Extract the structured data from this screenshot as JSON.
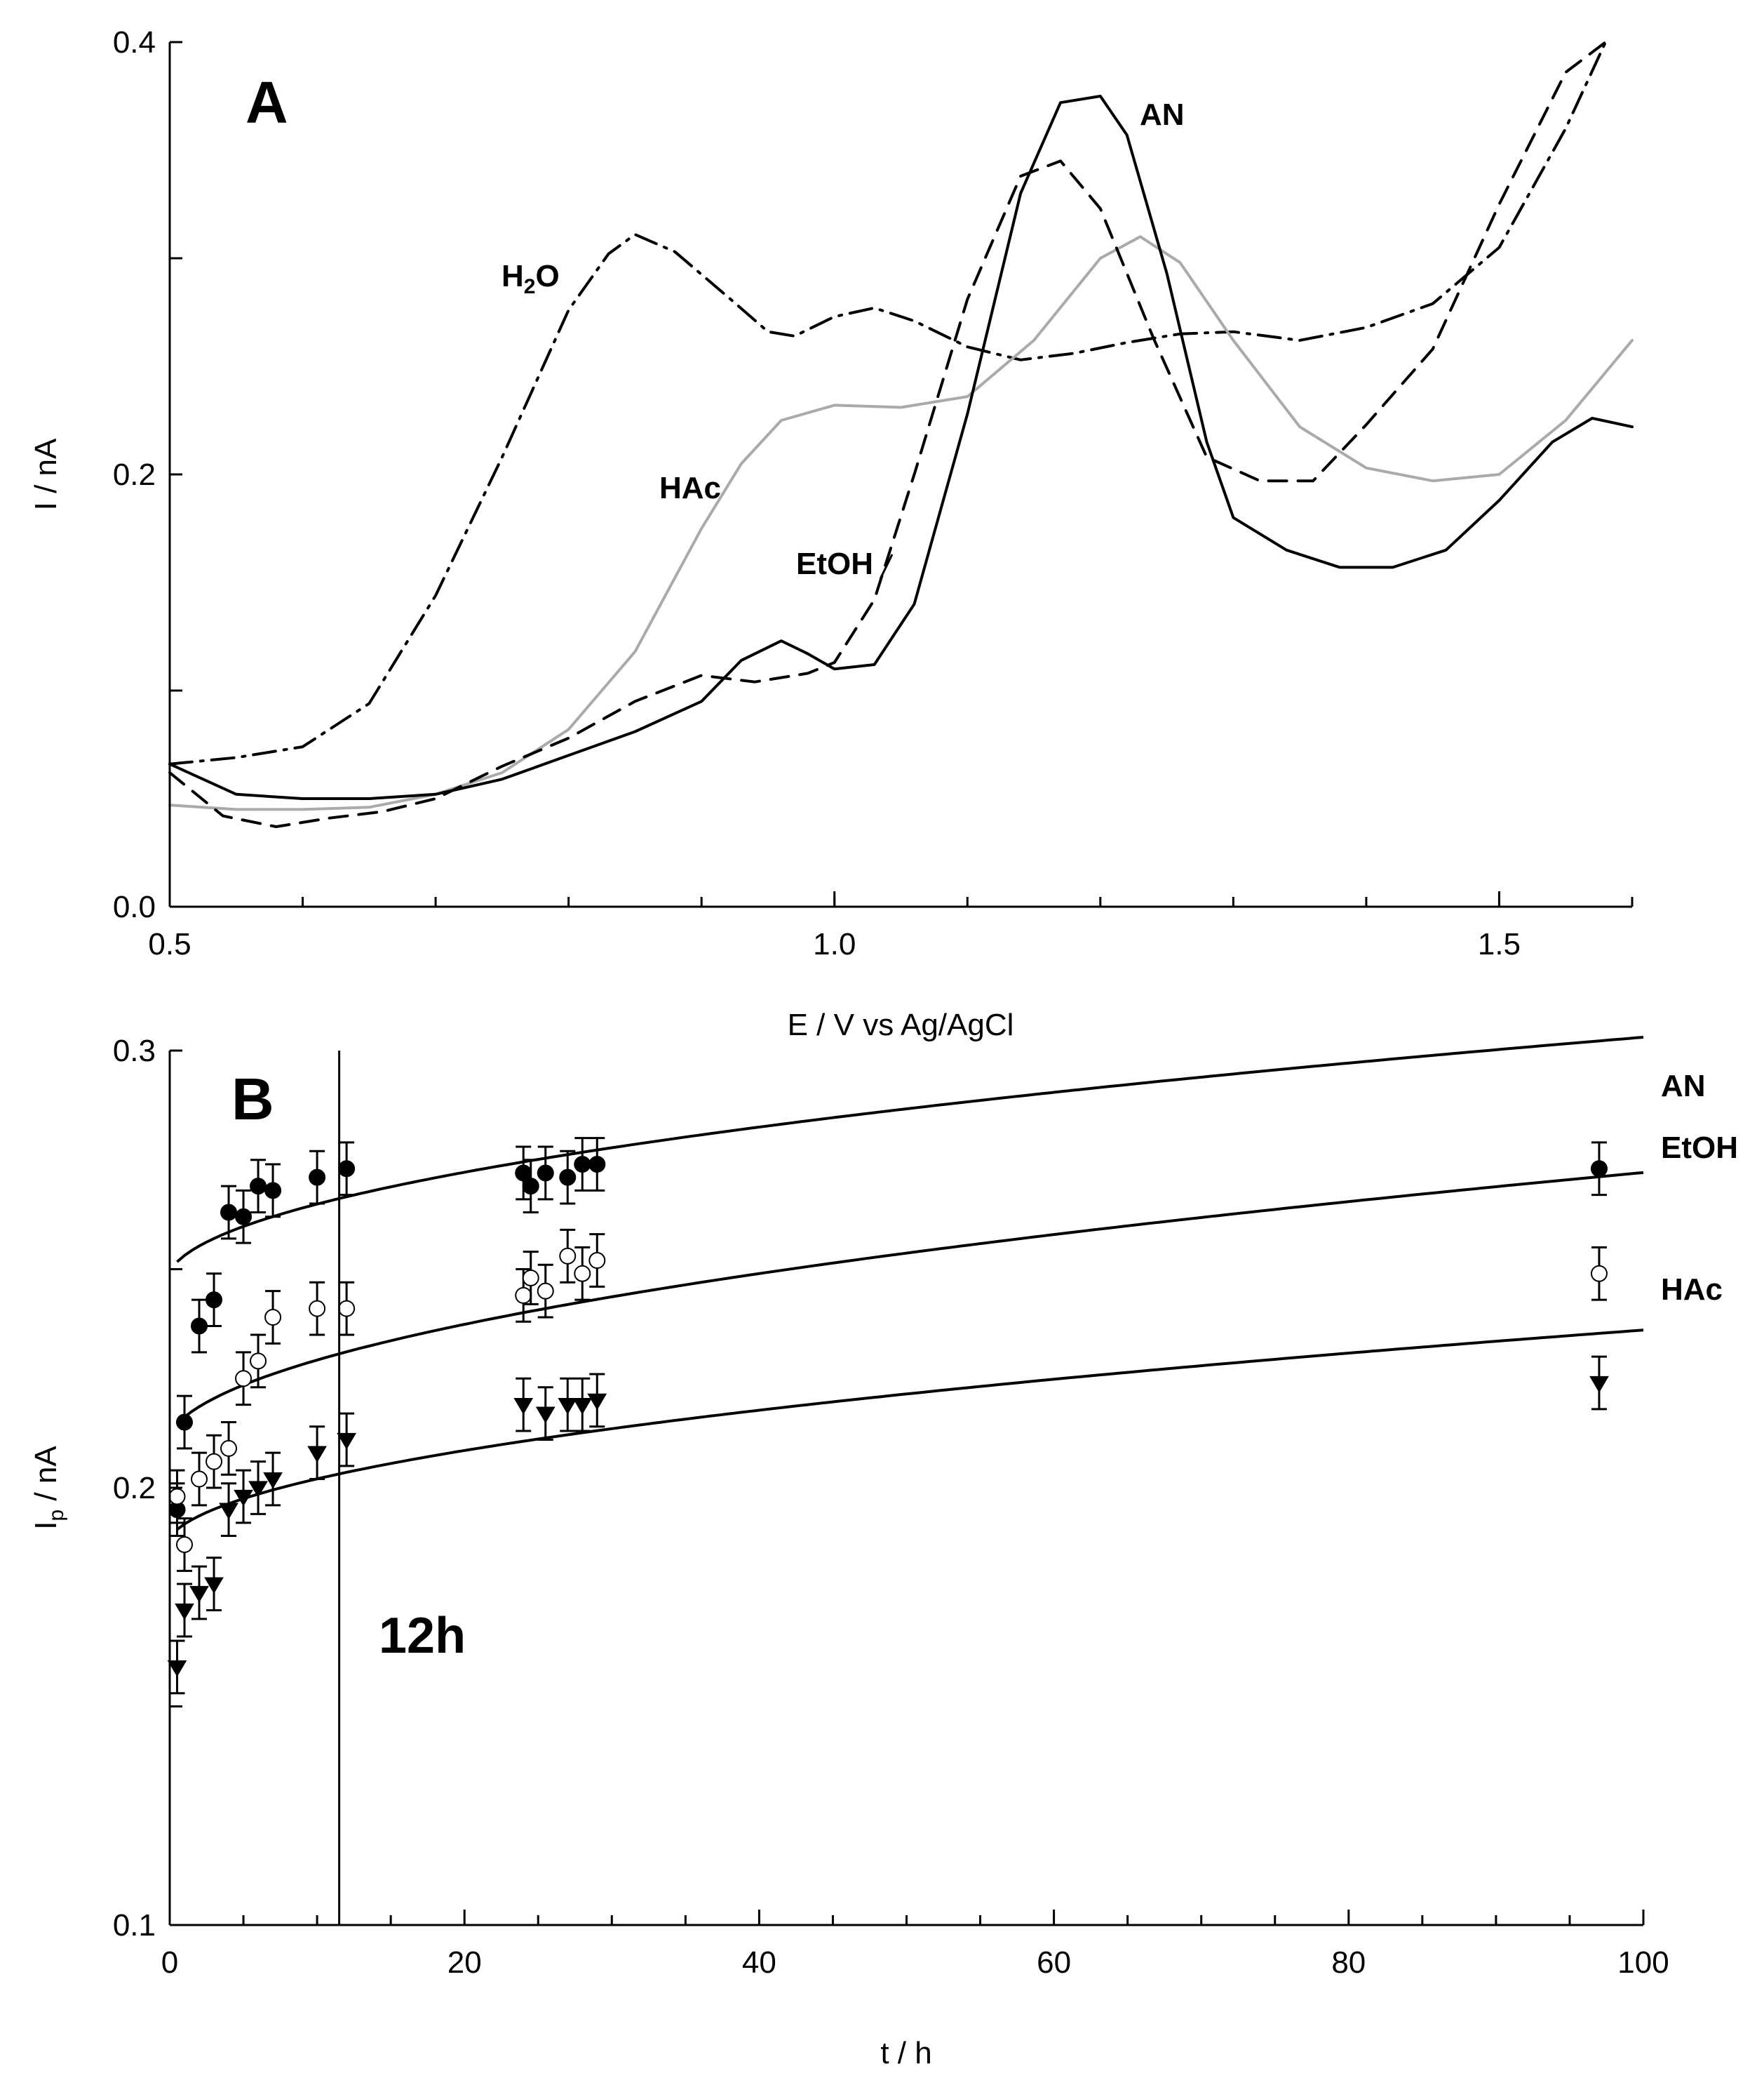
{
  "chart_data": [
    {
      "type": "line",
      "panel": "A",
      "xlabel": "E / V vs Ag/AgCl",
      "ylabel": "I / nA",
      "xlim": [
        0.5,
        1.6
      ],
      "ylim": [
        0.0,
        0.4
      ],
      "xticks": [
        {
          "value": 0.5,
          "label": "0.5"
        },
        {
          "value": 1.0,
          "label": "1.0"
        },
        {
          "value": 1.5,
          "label": "1.5"
        }
      ],
      "yticks": [
        {
          "value": 0.0,
          "label": "0.0"
        },
        {
          "value": 0.2,
          "label": "0.2"
        },
        {
          "value": 0.4,
          "label": "0.4"
        }
      ],
      "series": [
        {
          "name": "H2O",
          "label": "H",
          "label_sub": "2",
          "label_tail": "O",
          "style": "dashdot",
          "color": "#000000",
          "x": [
            0.5,
            0.55,
            0.6,
            0.65,
            0.7,
            0.75,
            0.8,
            0.83,
            0.85,
            0.88,
            0.92,
            0.95,
            0.97,
            1.0,
            1.03,
            1.06,
            1.1,
            1.14,
            1.18,
            1.22,
            1.26,
            1.3,
            1.35,
            1.4,
            1.45,
            1.5,
            1.55,
            1.58
          ],
          "y": [
            0.066,
            0.069,
            0.074,
            0.094,
            0.144,
            0.208,
            0.276,
            0.302,
            0.311,
            0.303,
            0.282,
            0.266,
            0.264,
            0.273,
            0.277,
            0.271,
            0.259,
            0.253,
            0.256,
            0.261,
            0.265,
            0.266,
            0.262,
            0.268,
            0.279,
            0.305,
            0.36,
            0.4
          ]
        },
        {
          "name": "HAc",
          "label": "HAc",
          "style": "solid",
          "color": "#aaaaaa",
          "x": [
            0.5,
            0.55,
            0.6,
            0.65,
            0.7,
            0.75,
            0.8,
            0.85,
            0.9,
            0.93,
            0.96,
            1.0,
            1.05,
            1.1,
            1.15,
            1.2,
            1.23,
            1.26,
            1.3,
            1.35,
            1.4,
            1.45,
            1.5,
            1.55,
            1.6
          ],
          "y": [
            0.047,
            0.045,
            0.045,
            0.046,
            0.052,
            0.062,
            0.082,
            0.118,
            0.175,
            0.205,
            0.225,
            0.232,
            0.231,
            0.236,
            0.262,
            0.3,
            0.31,
            0.298,
            0.262,
            0.222,
            0.203,
            0.197,
            0.2,
            0.225,
            0.262
          ]
        },
        {
          "name": "EtOH",
          "label": "EtOH",
          "style": "dashed",
          "color": "#000000",
          "x": [
            0.5,
            0.54,
            0.58,
            0.62,
            0.66,
            0.7,
            0.75,
            0.8,
            0.85,
            0.9,
            0.94,
            0.98,
            1.0,
            1.03,
            1.06,
            1.1,
            1.14,
            1.17,
            1.2,
            1.24,
            1.28,
            1.32,
            1.36,
            1.4,
            1.45,
            1.5,
            1.55,
            1.58
          ],
          "y": [
            0.062,
            0.042,
            0.037,
            0.041,
            0.044,
            0.05,
            0.065,
            0.078,
            0.095,
            0.107,
            0.104,
            0.108,
            0.113,
            0.142,
            0.2,
            0.281,
            0.338,
            0.345,
            0.323,
            0.263,
            0.208,
            0.197,
            0.197,
            0.223,
            0.258,
            0.325,
            0.386,
            0.4
          ]
        },
        {
          "name": "AN",
          "label": "AN",
          "style": "solid",
          "color": "#000000",
          "x": [
            0.5,
            0.55,
            0.6,
            0.65,
            0.7,
            0.75,
            0.8,
            0.85,
            0.9,
            0.93,
            0.96,
            0.98,
            1.0,
            1.03,
            1.06,
            1.1,
            1.14,
            1.17,
            1.2,
            1.22,
            1.25,
            1.28,
            1.3,
            1.34,
            1.38,
            1.42,
            1.46,
            1.5,
            1.54,
            1.57,
            1.6
          ],
          "y": [
            0.066,
            0.052,
            0.05,
            0.05,
            0.052,
            0.059,
            0.07,
            0.081,
            0.095,
            0.114,
            0.123,
            0.117,
            0.11,
            0.112,
            0.14,
            0.228,
            0.33,
            0.372,
            0.375,
            0.357,
            0.293,
            0.215,
            0.18,
            0.165,
            0.157,
            0.157,
            0.165,
            0.188,
            0.215,
            0.226,
            0.222
          ]
        }
      ]
    },
    {
      "type": "scatter",
      "panel": "B",
      "xlabel": "t / h",
      "ylabel": "I",
      "ylabel_sub": "p",
      "ylabel_tail": " / nA",
      "xlim": [
        0,
        100
      ],
      "ylim": [
        0.1,
        0.3
      ],
      "xticks": [
        {
          "value": 0,
          "label": "0"
        },
        {
          "value": 20,
          "label": "20"
        },
        {
          "value": 40,
          "label": "40"
        },
        {
          "value": 60,
          "label": "60"
        },
        {
          "value": 80,
          "label": "80"
        },
        {
          "value": 100,
          "label": "100"
        }
      ],
      "yticks": [
        {
          "value": 0.1,
          "label": "0.1"
        },
        {
          "value": 0.2,
          "label": "0.2"
        },
        {
          "value": 0.3,
          "label": "0.3"
        }
      ],
      "annotation": {
        "text": "12h",
        "x": 11.5
      },
      "error_bar": 0.006,
      "fit_labels": [
        "AN",
        "EtOH",
        "HAc"
      ],
      "series": [
        {
          "name": "EtOH",
          "marker": "filled-circle",
          "points": [
            [
              0.5,
              0.195
            ],
            [
              1,
              0.215
            ],
            [
              2,
              0.237
            ],
            [
              3,
              0.243
            ],
            [
              4,
              0.263
            ],
            [
              5,
              0.262
            ],
            [
              6,
              0.269
            ],
            [
              7,
              0.268
            ],
            [
              10,
              0.271
            ],
            [
              12,
              0.273
            ],
            [
              24,
              0.272
            ],
            [
              24.5,
              0.269
            ],
            [
              25.5,
              0.272
            ],
            [
              27,
              0.271
            ],
            [
              28,
              0.274
            ],
            [
              29,
              0.274
            ],
            [
              97,
              0.273
            ]
          ],
          "fit": {
            "a": 0.247,
            "b": 0.0056,
            "c": 0.2,
            "p": 0.5
          }
        },
        {
          "name": "HAc",
          "marker": "open-circle",
          "points": [
            [
              0.5,
              0.198
            ],
            [
              1,
              0.187
            ],
            [
              2,
              0.202
            ],
            [
              3,
              0.206
            ],
            [
              4,
              0.209
            ],
            [
              5,
              0.225
            ],
            [
              6,
              0.229
            ],
            [
              7,
              0.239
            ],
            [
              10,
              0.241
            ],
            [
              12,
              0.241
            ],
            [
              24,
              0.244
            ],
            [
              24.5,
              0.248
            ],
            [
              25.5,
              0.245
            ],
            [
              27,
              0.253
            ],
            [
              28,
              0.249
            ],
            [
              29,
              0.252
            ],
            [
              97,
              0.249
            ]
          ],
          "fit": {
            "a": 0.209,
            "b": 0.0063,
            "c": 0.3,
            "p": 0.5
          }
        },
        {
          "name": "AN",
          "marker": "filled-triangle-down",
          "points": [
            [
              0.5,
              0.159
            ],
            [
              1,
              0.172
            ],
            [
              2,
              0.176
            ],
            [
              3,
              0.178
            ],
            [
              4,
              0.195
            ],
            [
              5,
              0.198
            ],
            [
              6,
              0.2
            ],
            [
              7,
              0.202
            ],
            [
              10,
              0.208
            ],
            [
              12,
              0.211
            ],
            [
              24,
              0.219
            ],
            [
              25.5,
              0.217
            ],
            [
              27,
              0.219
            ],
            [
              28,
              0.219
            ],
            [
              29,
              0.22
            ],
            [
              97,
              0.224
            ]
          ],
          "fit": {
            "a": 0.186,
            "b": 0.005,
            "c": 0.3,
            "p": 0.5
          }
        }
      ]
    }
  ],
  "panel_letters": {
    "a": "A",
    "b": "B"
  }
}
